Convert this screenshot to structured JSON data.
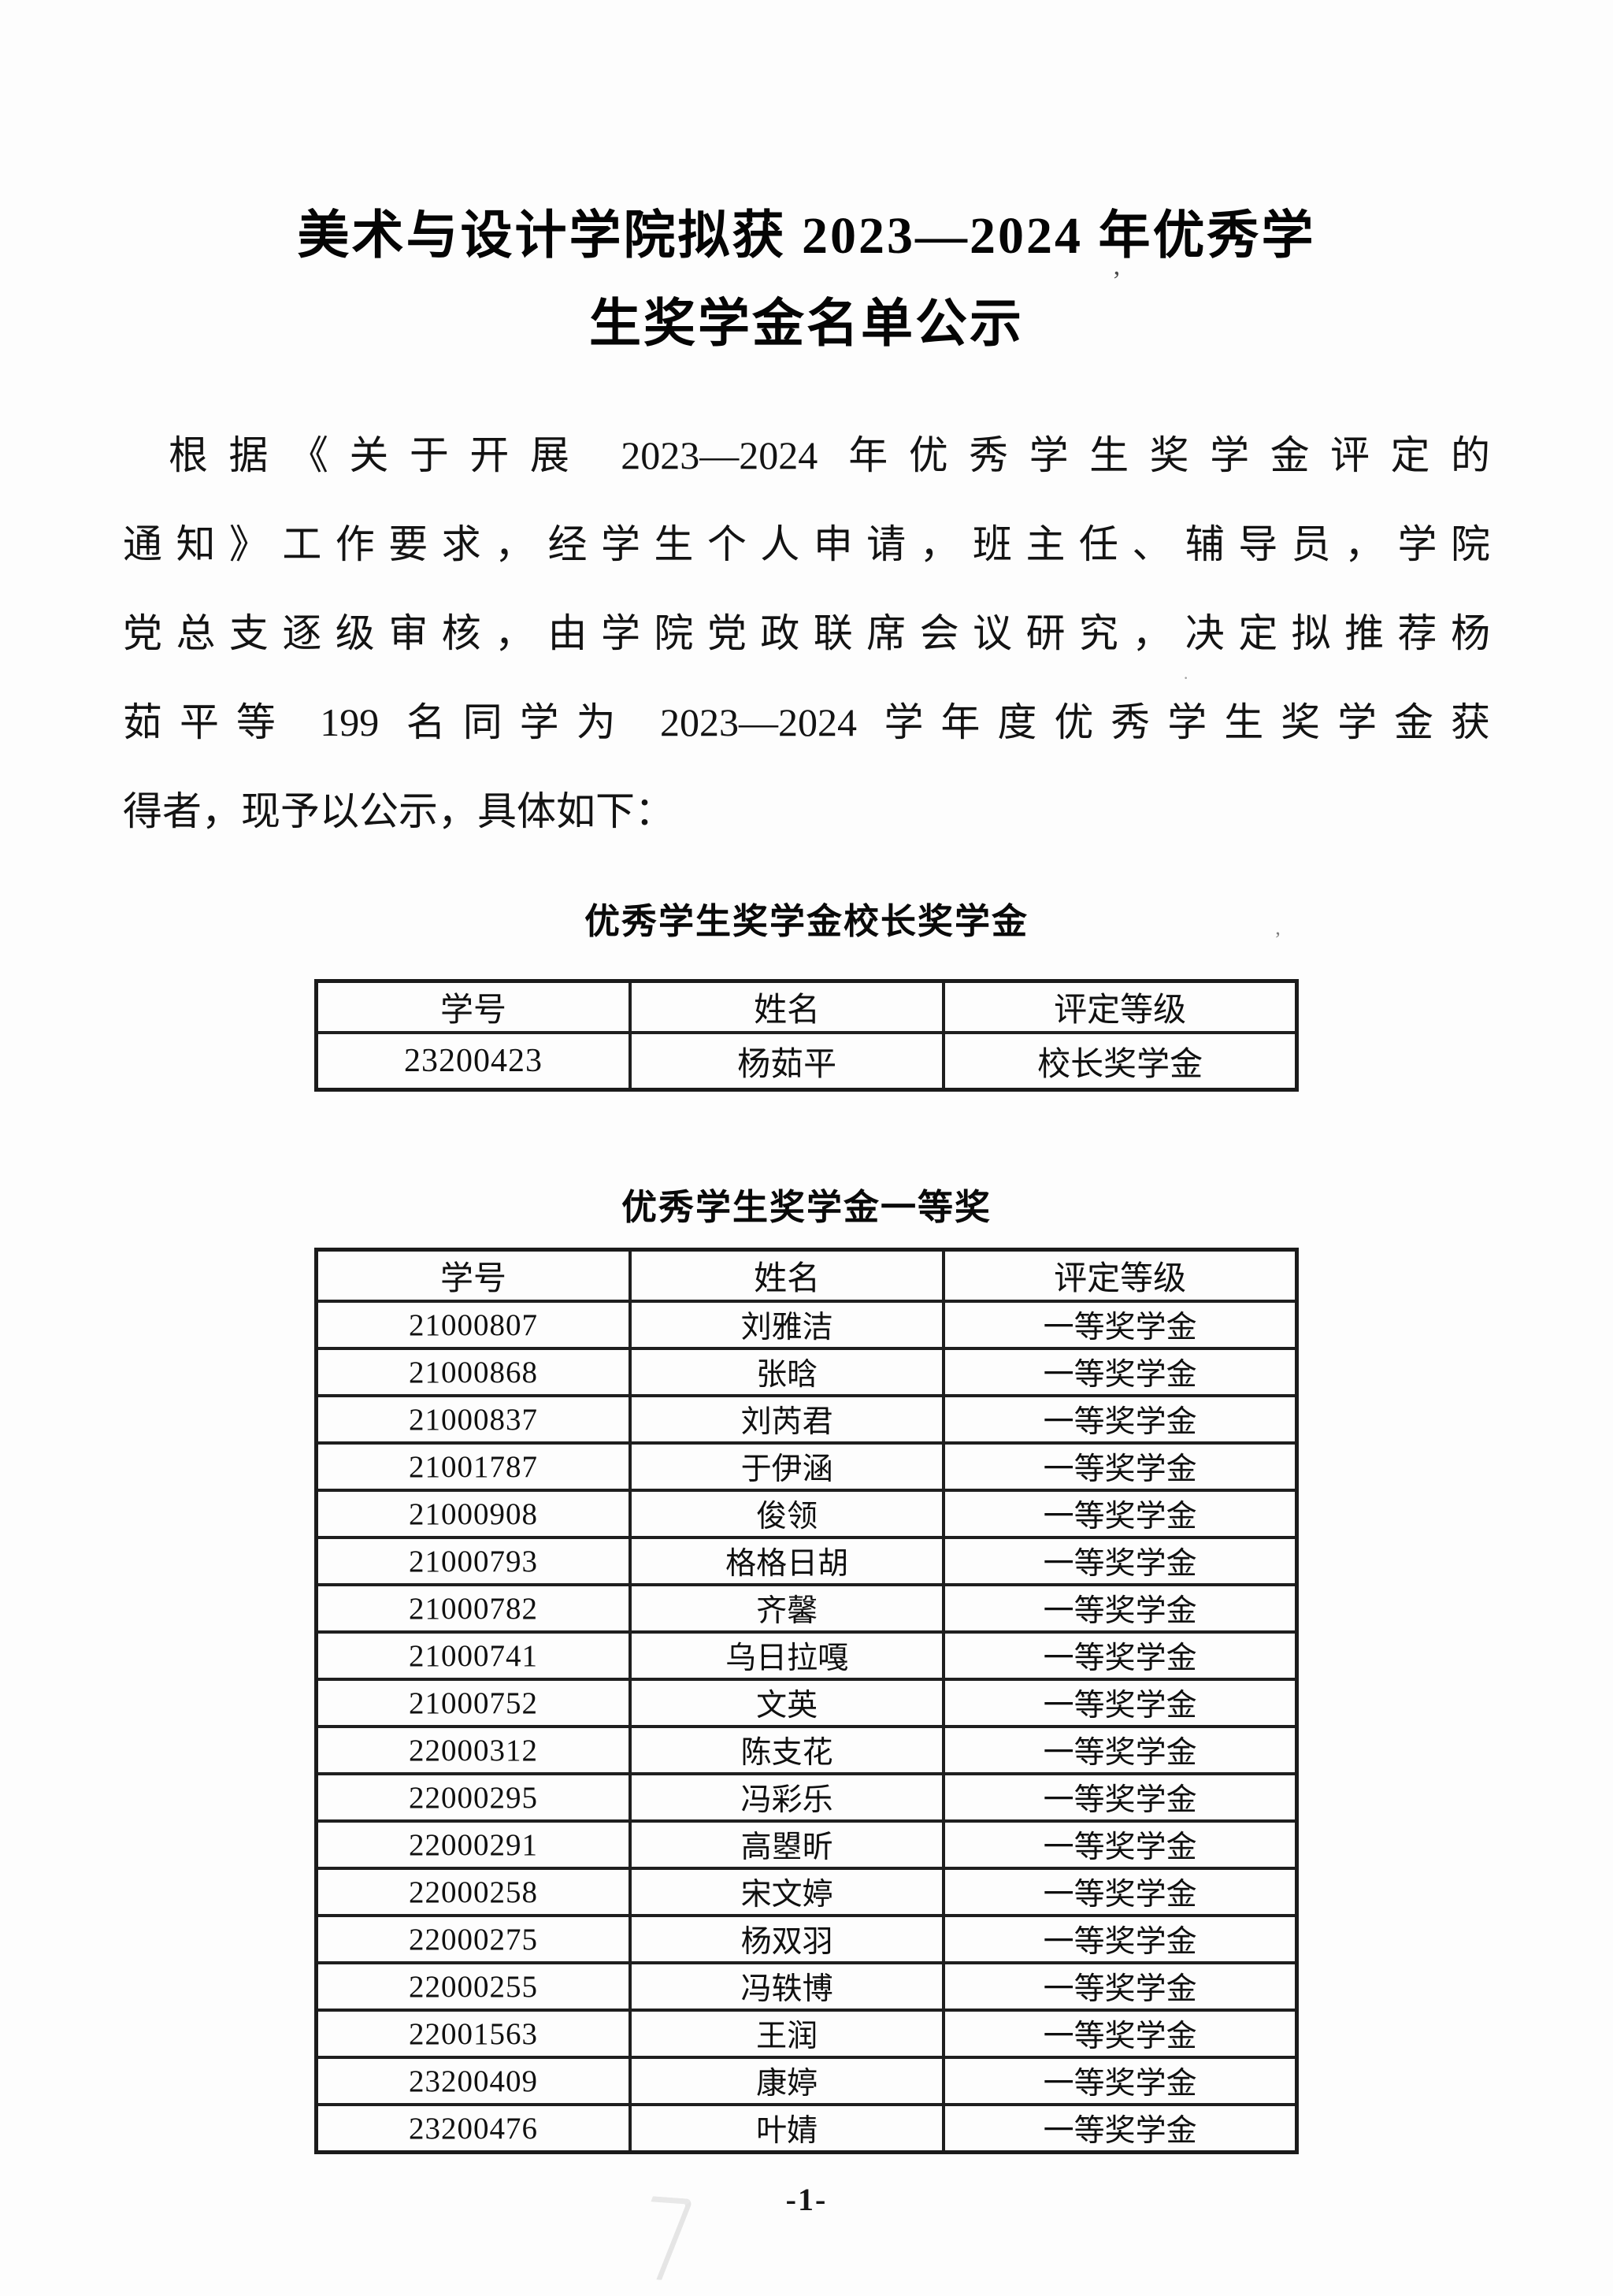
{
  "doc": {
    "title_line1": "美术与设计学院拟获 2023—2024 年优秀学",
    "title_line2": "生奖学金名单公示",
    "paragraph_lines": [
      "根据《关于开展 2023—2024 年优秀学生奖学金评定的",
      "通知》工作要求，经学生个人申请，班主任、辅导员，学院",
      "党总支逐级审核，由学院党政联席会议研究，决定拟推荐杨",
      "茹平等 199 名同学为 2023—2024 学年度优秀学生奖学金获",
      "得者，现予以公示，具体如下："
    ],
    "page_number": "-1-"
  },
  "tables": [
    {
      "heading": "优秀学生奖学金校长奖学金",
      "columns": [
        "学号",
        "姓名",
        "评定等级"
      ],
      "rows": [
        [
          "23200423",
          "杨茹平",
          "校长奖学金"
        ]
      ]
    },
    {
      "heading": "优秀学生奖学金一等奖",
      "columns": [
        "学号",
        "姓名",
        "评定等级"
      ],
      "rows": [
        [
          "21000807",
          "刘雅洁",
          "一等奖学金"
        ],
        [
          "21000868",
          "张晗",
          "一等奖学金"
        ],
        [
          "21000837",
          "刘芮君",
          "一等奖学金"
        ],
        [
          "21001787",
          "于伊涵",
          "一等奖学金"
        ],
        [
          "21000908",
          "俊领",
          "一等奖学金"
        ],
        [
          "21000793",
          "格格日胡",
          "一等奖学金"
        ],
        [
          "21000782",
          "齐馨",
          "一等奖学金"
        ],
        [
          "21000741",
          "乌日拉嘎",
          "一等奖学金"
        ],
        [
          "21000752",
          "文英",
          "一等奖学金"
        ],
        [
          "22000312",
          "陈支花",
          "一等奖学金"
        ],
        [
          "22000295",
          "冯彩乐",
          "一等奖学金"
        ],
        [
          "22000291",
          "高曌昕",
          "一等奖学金"
        ],
        [
          "22000258",
          "宋文婷",
          "一等奖学金"
        ],
        [
          "22000275",
          "杨双羽",
          "一等奖学金"
        ],
        [
          "22000255",
          "冯轶博",
          "一等奖学金"
        ],
        [
          "22001563",
          "王润",
          "一等奖学金"
        ],
        [
          "23200409",
          "康婷",
          "一等奖学金"
        ],
        [
          "23200476",
          "叶婧",
          "一等奖学金"
        ]
      ]
    }
  ],
  "artifacts": {
    "tick1": "’",
    "tick2": "’",
    "dot1": "·"
  }
}
